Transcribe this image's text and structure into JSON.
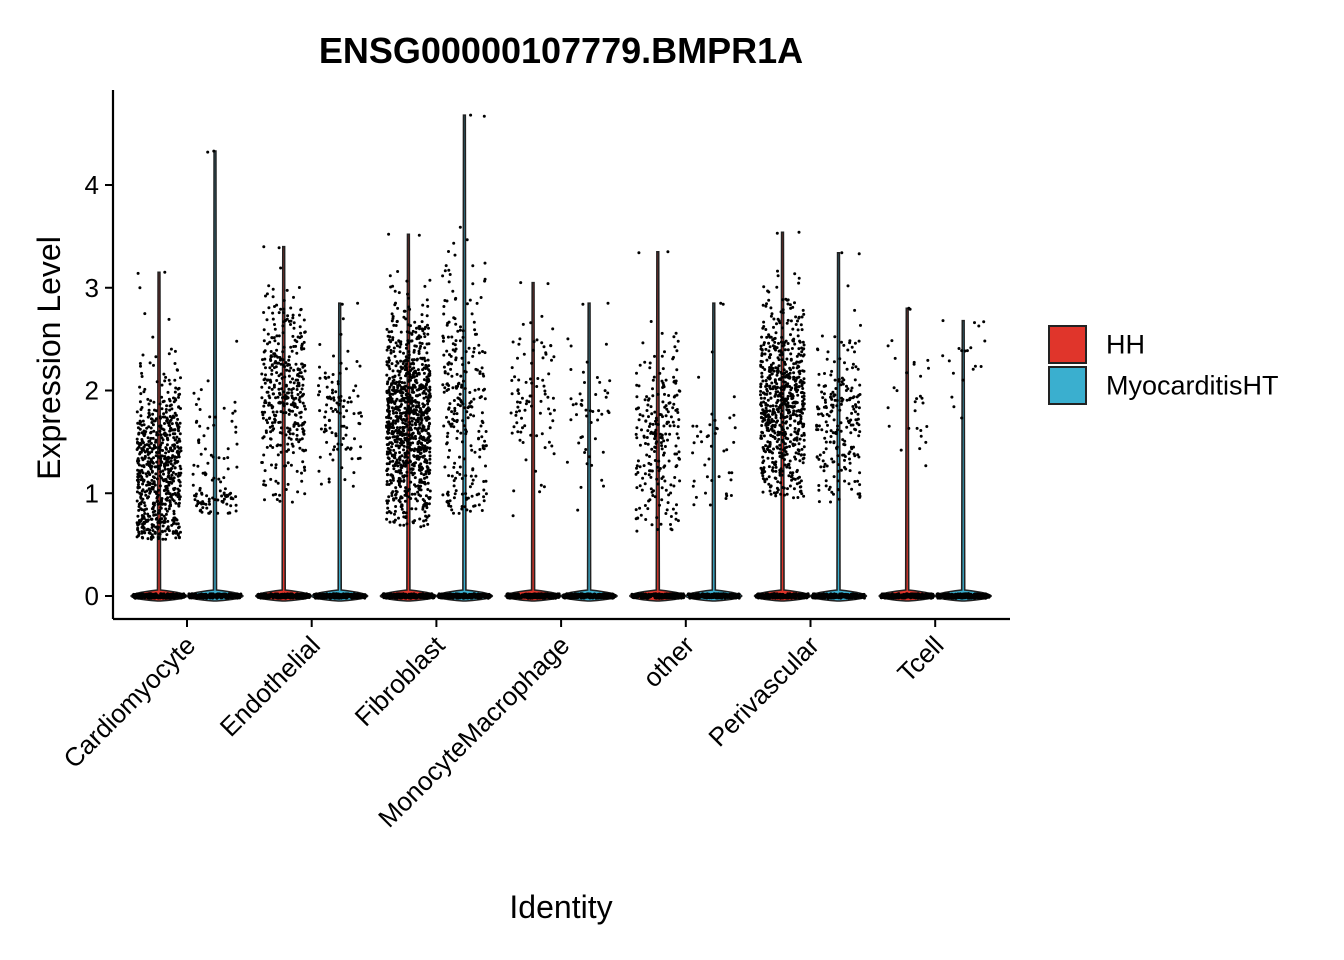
{
  "chart_data": {
    "type": "violin",
    "title": "ENSG00000107779.BMPR1A",
    "xlabel": "Identity",
    "ylabel": "Expression Level",
    "ylim": [
      -0.25,
      4.9
    ],
    "yticks": [
      0,
      1,
      2,
      3,
      4
    ],
    "categories": [
      "Cardiomyocyte",
      "Endothelial",
      "Fibroblast",
      "MonocyteMacrophage",
      "other",
      "Perivascular",
      "Tcell"
    ],
    "legend": {
      "position": "right",
      "entries": [
        "HH",
        "MyocarditisHT"
      ]
    },
    "colors": {
      "HH": "#E0352B",
      "MyocarditisHT": "#3AAFCF"
    },
    "grid": false,
    "series": [
      {
        "name": "HH",
        "max": [
          3.15,
          3.4,
          3.52,
          3.05,
          3.35,
          3.54,
          2.8
        ],
        "nonzero_median": [
          1.2,
          2.0,
          1.7,
          1.9,
          1.5,
          1.9,
          1.8
        ],
        "nonzero_min": [
          0.55,
          0.9,
          0.65,
          0.75,
          0.6,
          0.95,
          0.9
        ],
        "nonzero_count": [
          700,
          380,
          1000,
          90,
          230,
          700,
          30
        ]
      },
      {
        "name": "MyocarditisHT",
        "max": [
          4.33,
          2.85,
          4.68,
          2.85,
          2.85,
          3.34,
          2.68
        ],
        "nonzero_median": [
          1.0,
          1.8,
          1.8,
          1.8,
          1.4,
          1.7,
          2.2
        ],
        "nonzero_min": [
          0.8,
          1.0,
          0.8,
          0.8,
          0.8,
          0.9,
          1.15
        ],
        "nonzero_count": [
          110,
          110,
          260,
          50,
          45,
          220,
          20
        ]
      }
    ]
  }
}
